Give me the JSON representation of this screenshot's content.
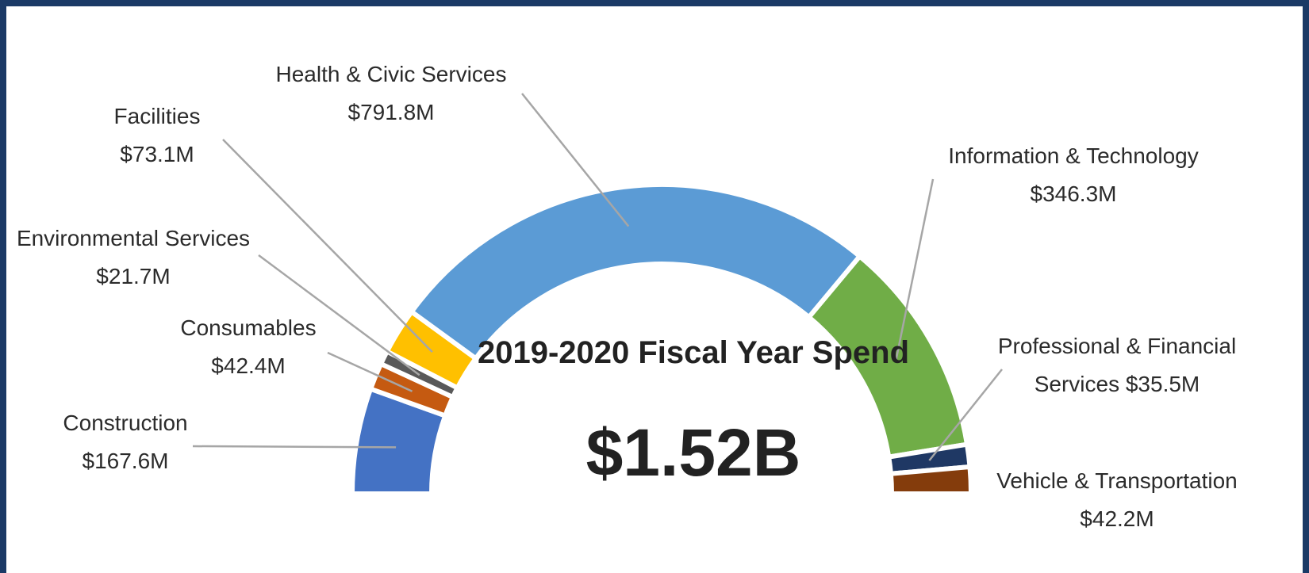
{
  "chart_data": {
    "type": "pie",
    "subtype": "semi-donut",
    "title": "2019-2020 Fiscal Year Spend",
    "total_label": "$1.52B",
    "slices": [
      {
        "name": "Construction",
        "value": 167.6,
        "value_label": "$167.6M",
        "color": "#4472c4"
      },
      {
        "name": "Consumables",
        "value": 42.4,
        "value_label": "$42.4M",
        "color": "#c55a11"
      },
      {
        "name": "Environmental Services",
        "value": 21.7,
        "value_label": "$21.7M",
        "color": "#595959"
      },
      {
        "name": "Facilities",
        "value": 73.1,
        "value_label": "$73.1M",
        "color": "#ffc000"
      },
      {
        "name": "Health & Civic Services",
        "value": 791.8,
        "value_label": "$791.8M",
        "color": "#5b9bd5"
      },
      {
        "name": "Information & Technology",
        "value": 346.3,
        "value_label": "$346.3M",
        "color": "#70ad47"
      },
      {
        "name": "Professional & Financial Services",
        "value": 35.5,
        "value_label": "$35.5M",
        "color": "#1f3864"
      },
      {
        "name": "Vehicle & Transportation",
        "value": 42.2,
        "value_label": "$42.2M",
        "color": "#843c0c"
      }
    ]
  }
}
